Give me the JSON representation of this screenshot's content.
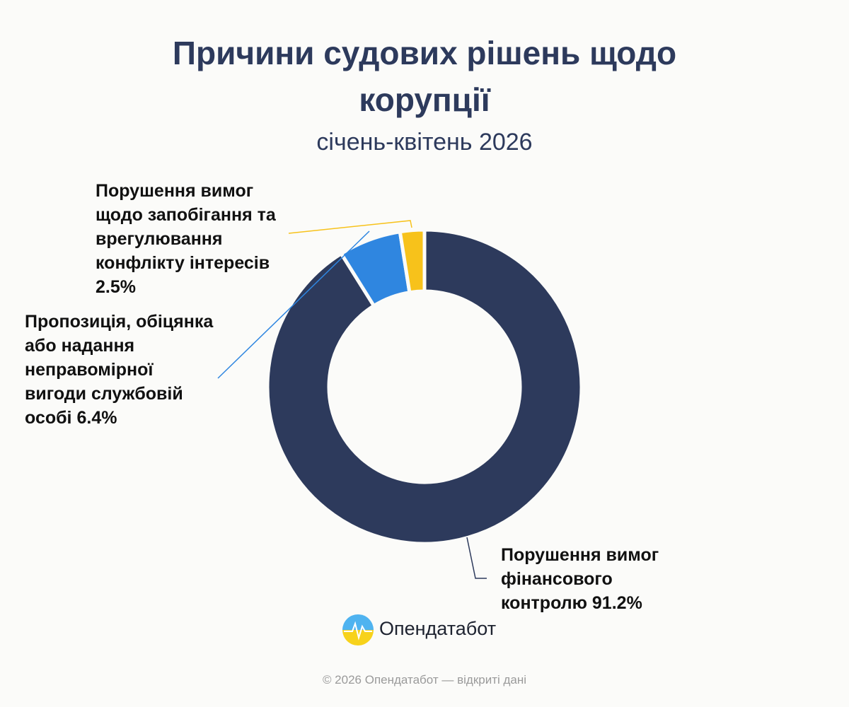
{
  "chart_data": {
    "type": "donut",
    "title": "Причини судових рішень щодо корупції",
    "subtitle": "січень-квітень 2026",
    "categories": [
      "Порушення вимог фінансового контролю",
      "Пропозиція, обіцянка або надання неправомірної вигоди службовій особі",
      "Порушення вимог щодо запобігання та врегулювання конфлікту інтересів"
    ],
    "values": [
      91.2,
      6.4,
      2.5
    ],
    "value_labels": [
      "91.2%",
      "6.4%",
      "2.5%"
    ],
    "colors": [
      "#2d3a5c",
      "#2f86e0",
      "#f7c21b"
    ]
  },
  "brand": "Опендатабот",
  "footer": "© 2026 Опендатабот — відкриті дані"
}
